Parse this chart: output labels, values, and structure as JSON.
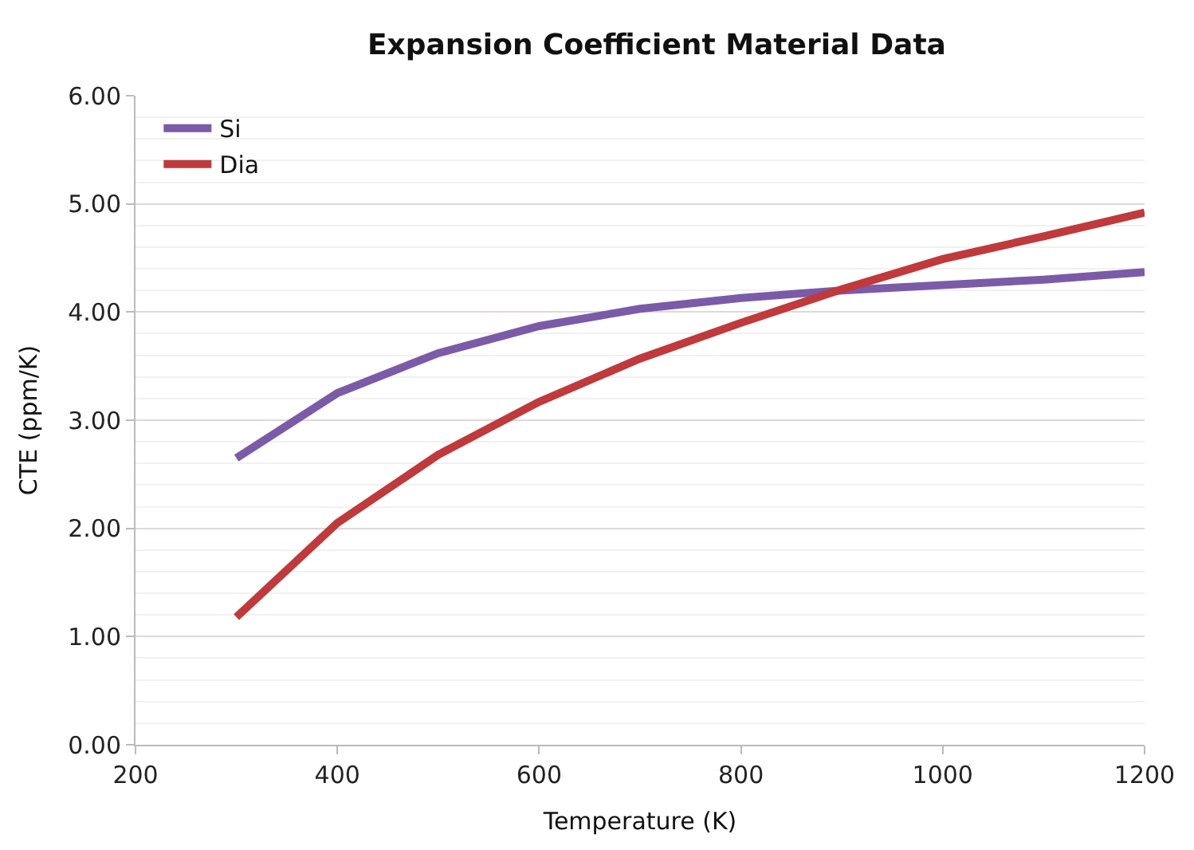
{
  "chart_data": {
    "type": "line",
    "title": "Expansion Coefficient Material Data",
    "xlabel": "Temperature (K)",
    "ylabel": "CTE (ppm/K)",
    "x": [
      300,
      400,
      500,
      600,
      700,
      800,
      900,
      1000,
      1100,
      1200
    ],
    "series": [
      {
        "name": "Si",
        "color": "#7b5ba8",
        "values": [
          2.65,
          3.25,
          3.62,
          3.87,
          4.03,
          4.13,
          4.2,
          4.25,
          4.3,
          4.37
        ]
      },
      {
        "name": "Dia",
        "color": "#c0393b",
        "values": [
          1.18,
          2.05,
          2.68,
          3.17,
          3.57,
          3.9,
          4.21,
          4.49,
          4.7,
          4.92
        ]
      }
    ],
    "xlim": [
      200,
      1200
    ],
    "xticks": [
      200,
      400,
      600,
      800,
      1000,
      1200
    ],
    "ylim": [
      0,
      6
    ],
    "yticks": [
      {
        "value": 0,
        "label": "0.00"
      },
      {
        "value": 1,
        "label": "1.00"
      },
      {
        "value": 2,
        "label": "2.00"
      },
      {
        "value": 3,
        "label": "3.00"
      },
      {
        "value": 4,
        "label": "4.00"
      },
      {
        "value": 5,
        "label": "5.00"
      },
      {
        "value": 6,
        "label": "6.00"
      }
    ],
    "grid": "y",
    "legend": "top left",
    "marker": "none",
    "line_style": "solid"
  }
}
